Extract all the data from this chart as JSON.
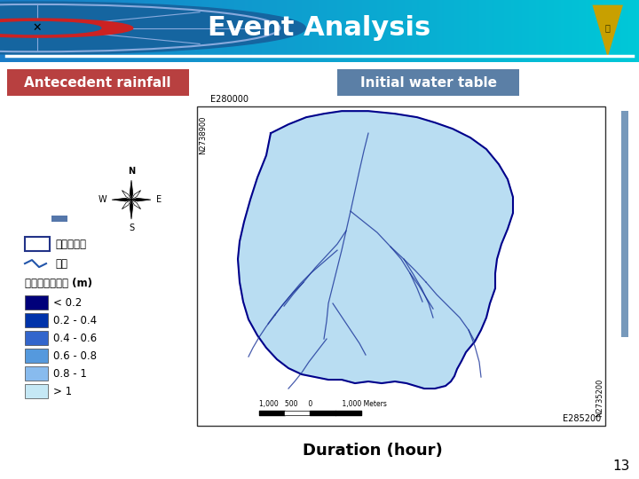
{
  "title": "Event Analysis",
  "title_color": "white",
  "slide_bg": "white",
  "antecedent_label": "Antecedent rainfall",
  "antecedent_bg": "#b84040",
  "water_table_label": "Initial water table",
  "water_table_bg": "#5b7fa6",
  "duration_label": "Duration (hour)",
  "slide_number": "13",
  "map_legend_title": "初始地下水位深 (m)",
  "legend_items": [
    {
      "label": "< 0.2",
      "color": "#00007a"
    },
    {
      "label": "0.2 - 0.4",
      "color": "#0033aa"
    },
    {
      "label": "0.4 - 0.6",
      "color": "#3366cc"
    },
    {
      "label": "0.6 - 0.8",
      "color": "#5599dd"
    },
    {
      "label": "0.8 - 1",
      "color": "#88bbee"
    },
    {
      "label": "> 1",
      "color": "#c5e8f5"
    }
  ],
  "legend_catchment": "集水區邊界",
  "legend_stream": "水系",
  "header_color_left": "#1a7cc8",
  "header_color_right": "#00c8d8",
  "map_fill": "#add8f0",
  "map_border": "#00008b",
  "river_color": "#1a3399"
}
